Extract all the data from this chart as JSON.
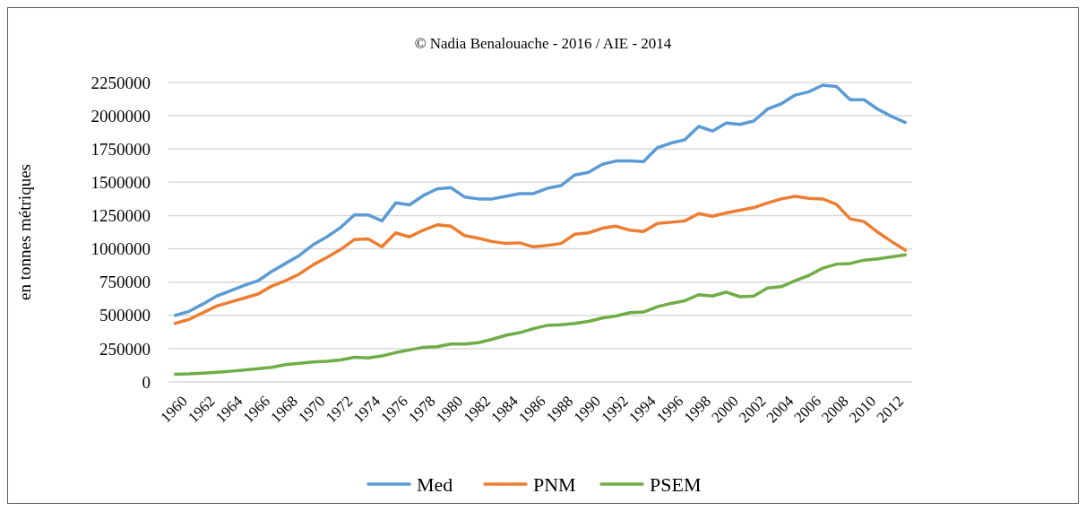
{
  "chart_data": {
    "type": "line",
    "title": "© Nadia Benalouache - 2016 / AIE - 2014",
    "ylabel": "en tonnes métriques",
    "categories": [
      "1960",
      null,
      "1962",
      null,
      "1964",
      null,
      "1966",
      null,
      "1968",
      null,
      "1970",
      null,
      "1972",
      null,
      "1974",
      null,
      "1976",
      null,
      "1978",
      null,
      "1980",
      null,
      "1982",
      null,
      "1984",
      null,
      "1986",
      null,
      "1988",
      null,
      "1990",
      null,
      "1992",
      null,
      "1994",
      null,
      "1996",
      null,
      "1998",
      null,
      "2000",
      null,
      "2002",
      null,
      "2004",
      null,
      "2006",
      null,
      "2008",
      null,
      "2010",
      null,
      "2012",
      null
    ],
    "series": [
      {
        "name": "Med",
        "color": "#5b9bd5",
        "values": [
          500000,
          530000,
          585000,
          645000,
          685000,
          725000,
          760000,
          830000,
          890000,
          950000,
          1030000,
          1090000,
          1160000,
          1255000,
          1255000,
          1210000,
          1345000,
          1330000,
          1400000,
          1450000,
          1460000,
          1390000,
          1375000,
          1375000,
          1395000,
          1415000,
          1415000,
          1455000,
          1475000,
          1555000,
          1575000,
          1635000,
          1660000,
          1660000,
          1655000,
          1760000,
          1795000,
          1820000,
          1920000,
          1885000,
          1945000,
          1935000,
          1960000,
          2050000,
          2090000,
          2155000,
          2180000,
          2230000,
          2220000,
          2120000,
          2120000,
          2050000,
          1995000,
          1950000
        ]
      },
      {
        "name": "PNM",
        "color": "#ed7d31",
        "values": [
          440000,
          470000,
          520000,
          570000,
          600000,
          630000,
          660000,
          720000,
          760000,
          810000,
          880000,
          935000,
          995000,
          1070000,
          1075000,
          1015000,
          1120000,
          1090000,
          1140000,
          1180000,
          1170000,
          1100000,
          1080000,
          1055000,
          1040000,
          1045000,
          1015000,
          1025000,
          1040000,
          1110000,
          1120000,
          1155000,
          1170000,
          1140000,
          1130000,
          1190000,
          1200000,
          1210000,
          1265000,
          1245000,
          1270000,
          1290000,
          1310000,
          1345000,
          1375000,
          1395000,
          1380000,
          1375000,
          1335000,
          1225000,
          1205000,
          1125000,
          1055000,
          990000
        ]
      },
      {
        "name": "PSEM",
        "color": "#70ad47",
        "values": [
          58000,
          60000,
          65000,
          72000,
          80000,
          90000,
          100000,
          110000,
          130000,
          140000,
          150000,
          155000,
          165000,
          185000,
          180000,
          195000,
          220000,
          240000,
          260000,
          265000,
          285000,
          285000,
          295000,
          320000,
          350000,
          370000,
          400000,
          425000,
          430000,
          440000,
          455000,
          480000,
          495000,
          520000,
          525000,
          565000,
          590000,
          610000,
          655000,
          645000,
          675000,
          640000,
          645000,
          705000,
          715000,
          760000,
          800000,
          855000,
          885000,
          890000,
          915000,
          925000,
          940000,
          955000
        ]
      }
    ],
    "ylim": [
      0,
      2250000
    ],
    "yticks": [
      0,
      250000,
      500000,
      750000,
      1000000,
      1250000,
      1500000,
      1750000,
      2000000,
      2250000
    ],
    "grid": "y",
    "legend": "bottom",
    "marker": "none",
    "line_style": "solid"
  }
}
